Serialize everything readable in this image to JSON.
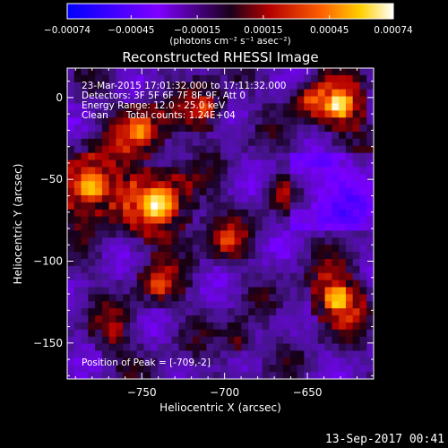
{
  "chart_data": {
    "type": "heatmap",
    "title": "Reconstructed RHESSI Image",
    "xlabel": "Heliocentric X (arcsec)",
    "ylabel": "Heliocentric Y (arcsec)",
    "xlim": [
      -795,
      -610
    ],
    "ylim": [
      -172,
      18
    ],
    "x_ticks": [
      -750,
      -700,
      -650
    ],
    "x_tick_labels": [
      "−750",
      "−700",
      "−650"
    ],
    "y_ticks": [
      0,
      -50,
      -100,
      -150
    ],
    "y_tick_labels": [
      "0",
      "−50",
      "−100",
      "−150"
    ],
    "colorbar": {
      "range": [
        -0.00074,
        0.00074
      ],
      "ticks": [
        -0.00074,
        -0.00045,
        -0.00015,
        0.00015,
        0.00045,
        0.00074
      ],
      "tick_labels": [
        "−0.00074",
        "−0.00045",
        "−0.00015",
        "0.00015",
        "0.00045",
        "0.00074"
      ],
      "unit_label": "(photons cm⁻² s⁻¹ asec⁻²)"
    },
    "annotations": [
      "23-Mar-2015 17:01:32.000 to 17:11:32.000",
      "Detectors: 3F 5F 6F 7F 8F 9F, Att 0",
      "Energy Range: 12.0 - 25.0 keV",
      "Clean      Total counts: 1.24E+04"
    ],
    "peak_label": "Position of Peak = [-709,-2]",
    "grid": false,
    "legend": "colorbar-top"
  },
  "footer": {
    "date": "13-Sep-2017 00:41"
  }
}
